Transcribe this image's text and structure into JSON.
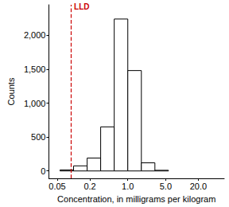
{
  "chart_data": {
    "type": "histogram",
    "xlabel": "Concentration, in milligrams per kilogram",
    "ylabel": "Counts",
    "bins": [
      0.0562,
      0.1,
      0.178,
      0.316,
      0.562,
      1.0,
      1.78,
      3.16,
      5.62
    ],
    "counts": [
      15,
      75,
      190,
      650,
      2240,
      1480,
      120,
      10
    ],
    "color": "#ffffff",
    "log": "x",
    "xlim": [
      0.035,
      60
    ],
    "xticks": [
      0.05,
      0.2,
      {
        "value": 1,
        "label": "1.0"
      },
      {
        "value": 5,
        "label": "5.0"
      },
      {
        "value": 20,
        "label": "20.0"
      }
    ],
    "ylim": [
      -110,
      2450
    ],
    "yticks": [
      0,
      500,
      {
        "value": 1000,
        "label": "1,000"
      },
      {
        "value": 1500,
        "label": "1,500"
      },
      {
        "value": 2000,
        "label": "2,000"
      }
    ],
    "grid": false,
    "annotations": [
      {
        "text": "LLD",
        "x": 0.09,
        "color": "#cc0000",
        "line_style": "dashed"
      }
    ]
  }
}
